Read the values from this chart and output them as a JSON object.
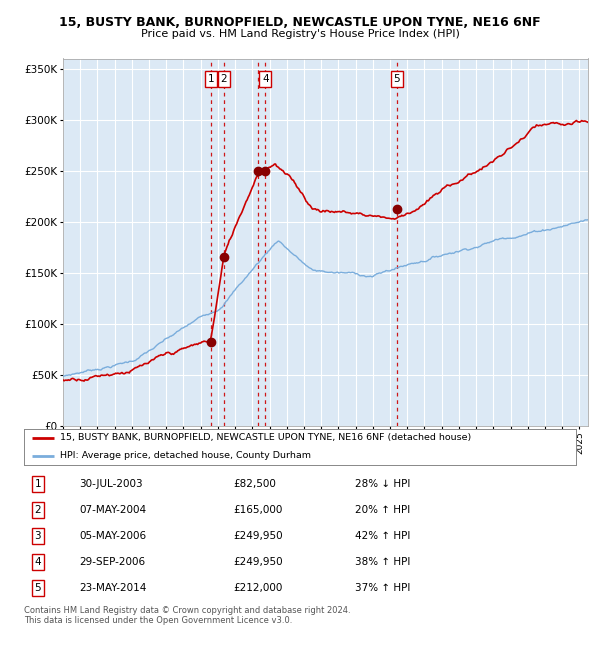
{
  "title1": "15, BUSTY BANK, BURNOPFIELD, NEWCASTLE UPON TYNE, NE16 6NF",
  "title2": "Price paid vs. HM Land Registry's House Price Index (HPI)",
  "legend_line1": "15, BUSTY BANK, BURNOPFIELD, NEWCASTLE UPON TYNE, NE16 6NF (detached house)",
  "legend_line2": "HPI: Average price, detached house, County Durham",
  "footer1": "Contains HM Land Registry data © Crown copyright and database right 2024.",
  "footer2": "This data is licensed under the Open Government Licence v3.0.",
  "ylim": [
    0,
    360000
  ],
  "yticks": [
    0,
    50000,
    100000,
    150000,
    200000,
    250000,
    300000,
    350000
  ],
  "ytick_labels": [
    "£0",
    "£50K",
    "£100K",
    "£150K",
    "£200K",
    "£250K",
    "£300K",
    "£350K"
  ],
  "xlim_start": 1995.0,
  "xlim_end": 2025.5,
  "bg_color": "#dce9f5",
  "grid_color": "#ffffff",
  "red_line_color": "#cc0000",
  "blue_line_color": "#7aaddc",
  "transactions": [
    {
      "num": 1,
      "date_dec": 2003.58,
      "price": 82500,
      "label": "1"
    },
    {
      "num": 2,
      "date_dec": 2004.35,
      "price": 165000,
      "label": "2"
    },
    {
      "num": 3,
      "date_dec": 2006.34,
      "price": 249950,
      "label": "3"
    },
    {
      "num": 4,
      "date_dec": 2006.75,
      "price": 249950,
      "label": "4"
    },
    {
      "num": 5,
      "date_dec": 2014.39,
      "price": 212000,
      "label": "5"
    }
  ],
  "label_show": [
    1,
    2,
    4,
    5
  ],
  "table_rows": [
    {
      "num": "1",
      "date": "30-JUL-2003",
      "price": "£82,500",
      "hpi": "28% ↓ HPI"
    },
    {
      "num": "2",
      "date": "07-MAY-2004",
      "price": "£165,000",
      "hpi": "20% ↑ HPI"
    },
    {
      "num": "3",
      "date": "05-MAY-2006",
      "price": "£249,950",
      "hpi": "42% ↑ HPI"
    },
    {
      "num": "4",
      "date": "29-SEP-2006",
      "price": "£249,950",
      "hpi": "38% ↑ HPI"
    },
    {
      "num": "5",
      "date": "23-MAY-2014",
      "price": "£212,000",
      "hpi": "37% ↑ HPI"
    }
  ]
}
